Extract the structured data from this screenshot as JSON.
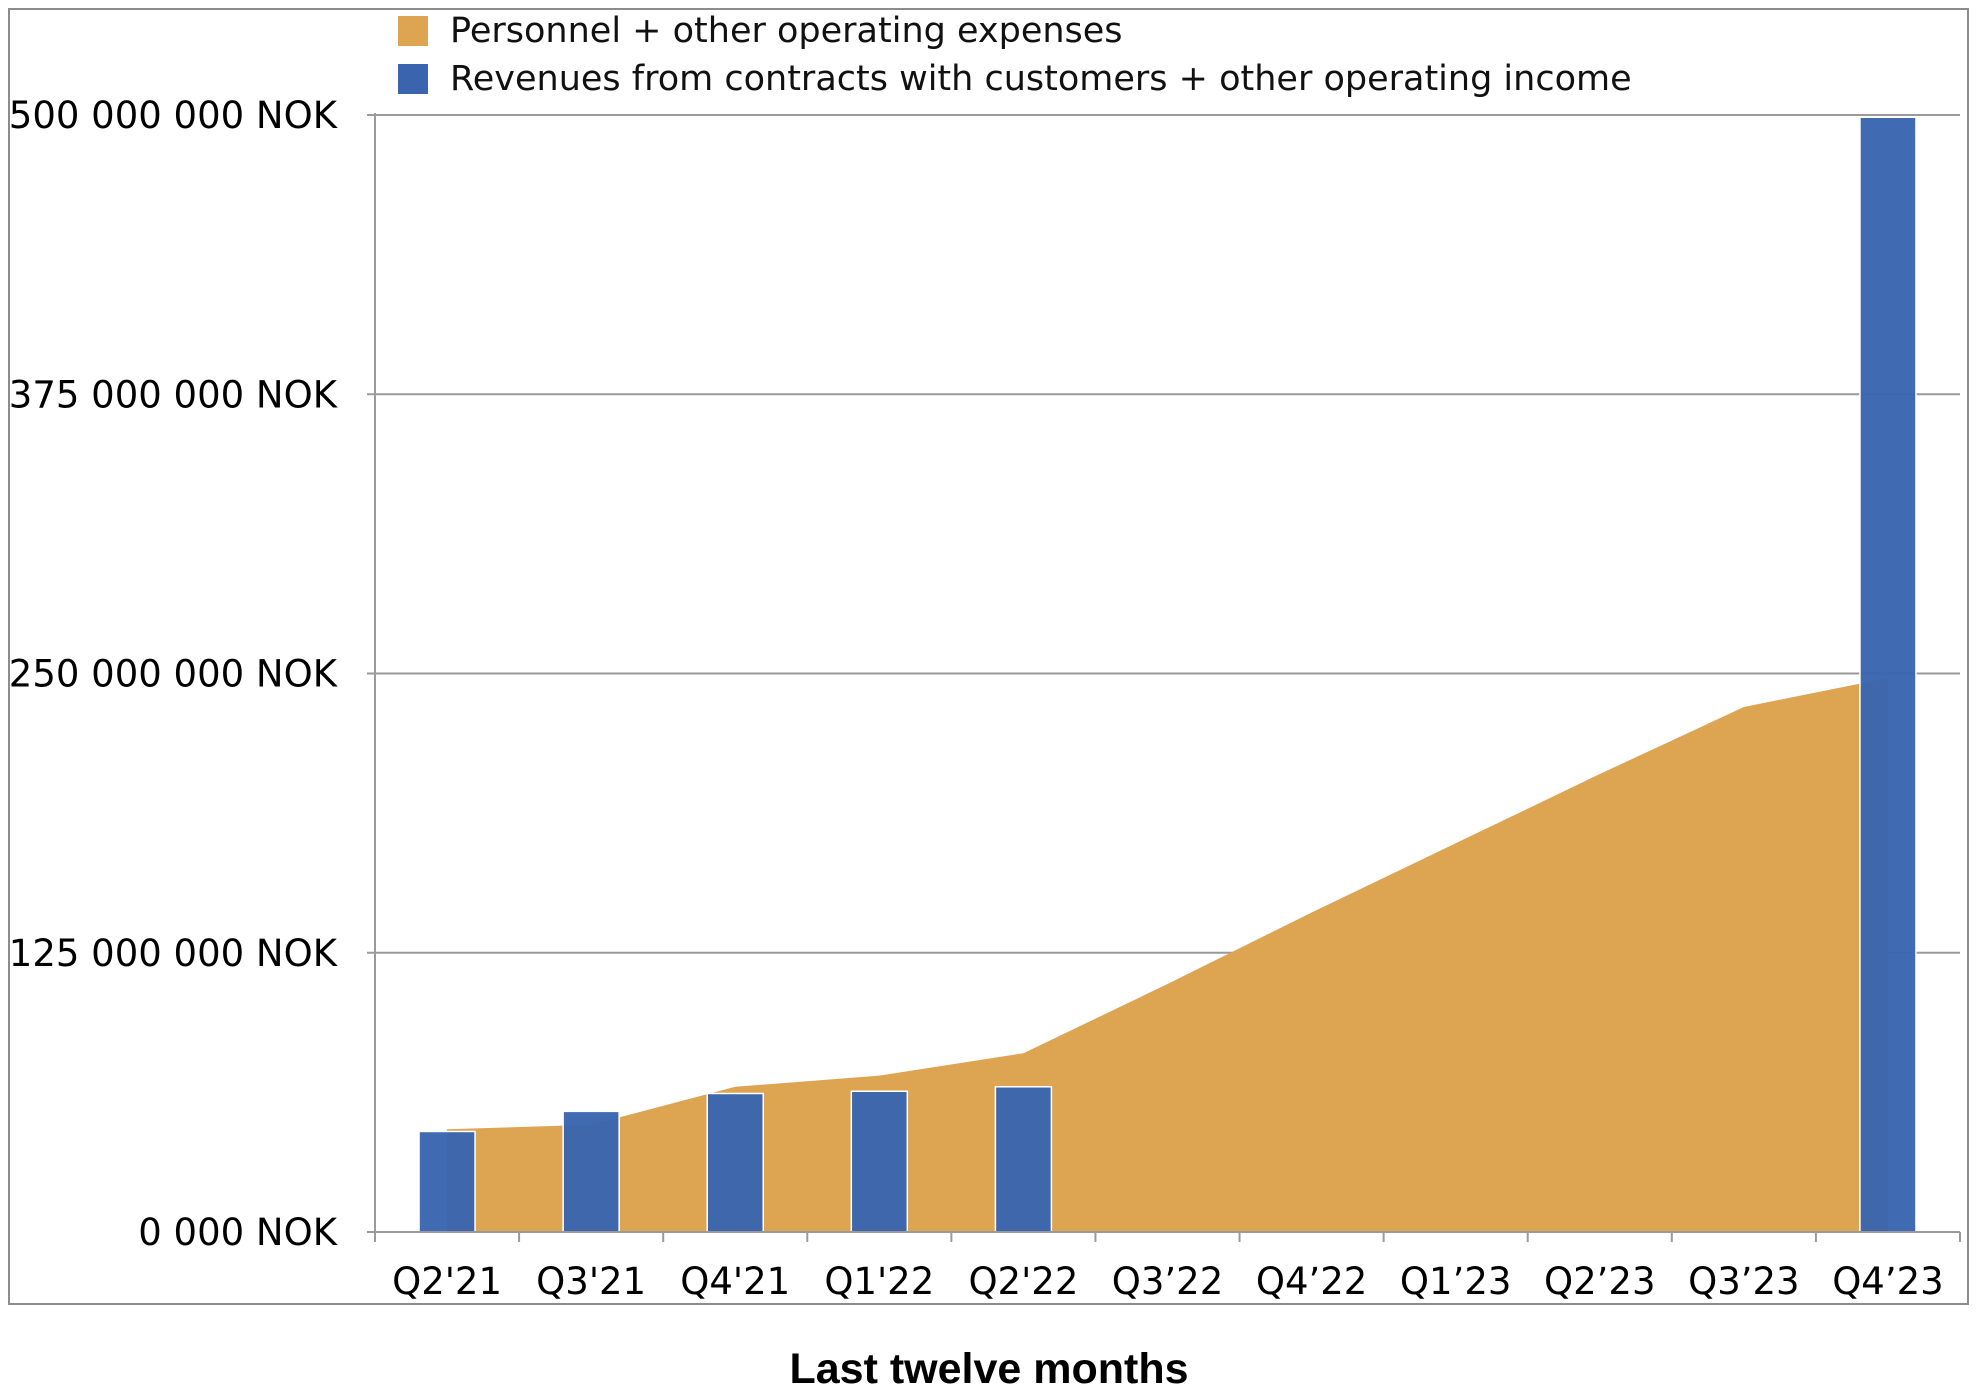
{
  "chart_data": {
    "type": "bar",
    "categories": [
      "Q2'21",
      "Q3'21",
      "Q4'21",
      "Q1'22",
      "Q2'22",
      "Q3’22",
      "Q4’22",
      "Q1’23",
      "Q2’23",
      "Q3’23",
      "Q4’23"
    ],
    "series": [
      {
        "name": "Personnel + other operating expenses",
        "render": "area",
        "color": "#DDA452",
        "values": [
          46000000,
          48000000,
          65000000,
          70000000,
          80000000,
          111000000,
          143000000,
          174000000,
          205000000,
          235000000,
          248000000
        ]
      },
      {
        "name": "Revenues from contracts with customers + other operating income",
        "render": "bar",
        "color": "#3A65AE",
        "values": [
          45000000,
          54000000,
          62000000,
          63000000,
          65000000,
          null,
          null,
          null,
          null,
          null,
          499000000
        ]
      }
    ],
    "yticks": [
      "0 000 NOK",
      "125 000 000 NOK",
      "250 000 000 NOK",
      "375 000 000 NOK",
      "500 000 000 NOK"
    ],
    "ylim": [
      0,
      500000000
    ],
    "xlabel": "Last twelve months",
    "ylabel": "",
    "title": "",
    "grid": true,
    "legend_position": "top"
  }
}
